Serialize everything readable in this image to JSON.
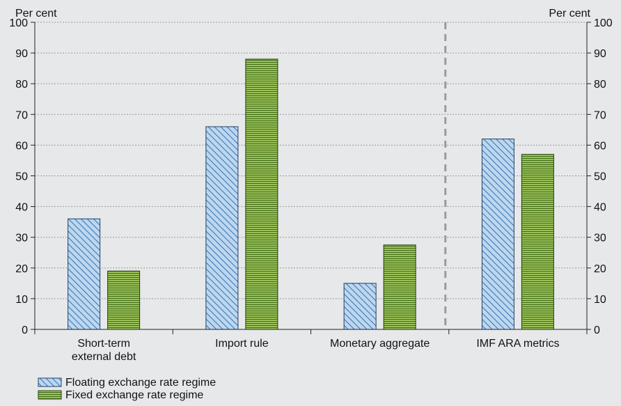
{
  "chart_data": {
    "type": "bar",
    "categories": [
      [
        "Short-term",
        "external debt"
      ],
      [
        "Import rule"
      ],
      [
        "Monetary aggregate"
      ],
      [
        "IMF ARA metrics"
      ]
    ],
    "series": [
      {
        "name": "Floating exchange rate regime",
        "values": [
          36,
          66,
          15,
          62
        ],
        "color": "#bcd7ef",
        "stroke": "#1f3f66",
        "hatch_color": "#3a72b0",
        "pattern": "diagonal-hatch"
      },
      {
        "name": "Fixed exchange rate regime",
        "values": [
          19,
          88,
          27.5,
          57
        ],
        "color": "#9bc15a",
        "stroke": "#1f3f10",
        "hatch_color": "#3f6b14",
        "pattern": "horizontal-lines"
      }
    ],
    "ylabel_left": "Per cent",
    "ylabel_right": "Per cent",
    "ylim": [
      0,
      100
    ],
    "yticks": [
      0,
      10,
      20,
      30,
      40,
      50,
      60,
      70,
      80,
      90,
      100
    ],
    "grid": true,
    "separator_before_category": 3,
    "legend_position": "bottom-left",
    "colors": {
      "background": "#e7e8e9",
      "axis": "#222222",
      "grid": "#9a9a9a",
      "separator": "#9a9a9a"
    }
  }
}
